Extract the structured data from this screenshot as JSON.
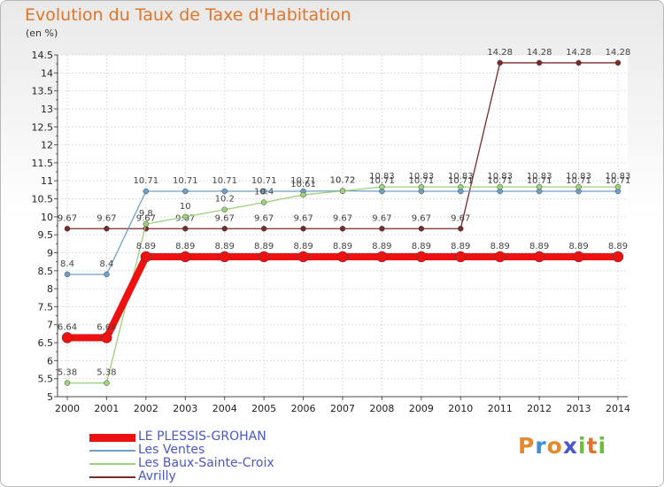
{
  "header": {
    "title": "Evolution du Taux de Taxe d'Habitation",
    "unit": "(en %)"
  },
  "logo": {
    "letters": [
      "P",
      "r",
      "o",
      "x",
      "i",
      "t",
      "i"
    ],
    "colors": [
      "#e48a2b",
      "#3a8fd6",
      "#e48a2b",
      "#4a57c8",
      "#6bbf3a",
      "#e0752a",
      "#6bbf3a"
    ]
  },
  "chart_data": {
    "type": "line",
    "title": "Evolution du Taux de Taxe d'Habitation",
    "ylabel": "(en %)",
    "xlabel": "",
    "x": [
      2000,
      2001,
      2002,
      2003,
      2004,
      2005,
      2006,
      2007,
      2008,
      2009,
      2010,
      2011,
      2012,
      2013,
      2014
    ],
    "ylim": [
      5,
      14.5
    ],
    "yticks": [
      5,
      5.5,
      6,
      6.5,
      7,
      7.5,
      8,
      8.5,
      9,
      9.5,
      10,
      10.5,
      11,
      11.5,
      12,
      12.5,
      13,
      13.5,
      14,
      14.5
    ],
    "grid": true,
    "legend_position": "bottom-left",
    "series": [
      {
        "name": "Avrilly",
        "color": "#7a2a2a",
        "lineWidth": 1.3,
        "markerRadius": 3,
        "values": [
          9.67,
          9.67,
          9.67,
          9.67,
          9.67,
          9.67,
          9.67,
          9.67,
          9.67,
          9.67,
          9.67,
          14.28,
          14.28,
          14.28,
          14.28
        ],
        "labels": [
          "9.67",
          "9.67",
          "9.67",
          "9.67",
          "9.67",
          "9.67",
          "9.67",
          "9.67",
          "9.67",
          "9.67",
          "9.67",
          "14.28",
          "14.28",
          "14.28",
          "14.28"
        ]
      },
      {
        "name": "Les Ventes",
        "color": "#6f9fcc",
        "lineWidth": 1.3,
        "markerRadius": 3,
        "values": [
          8.4,
          8.4,
          10.71,
          10.71,
          10.71,
          10.71,
          10.71,
          10.72,
          10.71,
          10.71,
          10.71,
          10.71,
          10.71,
          10.71,
          10.71
        ],
        "labels": [
          "8.4",
          "8.4",
          "10.71",
          "10.71",
          "10.71",
          "10.71",
          "10.71",
          "10.72",
          "10.71",
          "10.71",
          "10.71",
          "10.71",
          "10.71",
          "10.71",
          "10.71"
        ]
      },
      {
        "name": "Les Baux-Sainte-Croix",
        "color": "#9bd27a",
        "lineWidth": 1.3,
        "markerRadius": 3,
        "values": [
          5.38,
          5.38,
          9.8,
          10,
          10.2,
          10.4,
          10.61,
          10.72,
          10.83,
          10.83,
          10.83,
          10.83,
          10.83,
          10.83,
          10.83
        ],
        "labels": [
          "5.38",
          "5.38",
          "9.8",
          "10",
          "10.2",
          "10.4",
          "10.61",
          "10.72",
          "10.83",
          "10.83",
          "10.83",
          "10.83",
          "10.83",
          "10.83",
          "10.83"
        ]
      },
      {
        "name": "LE PLESSIS-GROHAN",
        "color": "#ee1111",
        "lineWidth": 8,
        "markerRadius": 6,
        "values": [
          6.64,
          6.64,
          8.89,
          8.89,
          8.89,
          8.89,
          8.89,
          8.89,
          8.89,
          8.89,
          8.89,
          8.89,
          8.89,
          8.89,
          8.89
        ],
        "labels": [
          "6.64",
          "6.64",
          "8.89",
          "8.89",
          "8.89",
          "8.89",
          "8.89",
          "8.89",
          "8.89",
          "8.89",
          "8.89",
          "8.89",
          "8.89",
          "8.89",
          "8.89"
        ]
      }
    ],
    "legend_order": [
      "LE PLESSIS-GROHAN",
      "Les Ventes",
      "Les Baux-Sainte-Croix",
      "Avrilly"
    ]
  }
}
